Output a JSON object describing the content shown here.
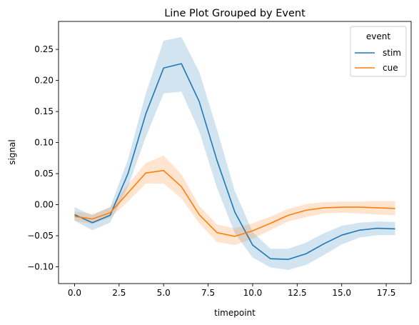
{
  "chart_data": {
    "type": "line",
    "title": "Line Plot Grouped by Event",
    "xlabel": "timepoint",
    "ylabel": "signal",
    "xlim": [
      -0.9,
      18.9
    ],
    "ylim": [
      -0.127,
      0.295
    ],
    "x_ticks": [
      0.0,
      2.5,
      5.0,
      7.5,
      10.0,
      12.5,
      15.0,
      17.5
    ],
    "x_tick_labels": [
      "0.0",
      "2.5",
      "5.0",
      "7.5",
      "10.0",
      "12.5",
      "15.0",
      "17.5"
    ],
    "y_ticks": [
      -0.1,
      -0.05,
      0.0,
      0.05,
      0.1,
      0.15,
      0.2,
      0.25
    ],
    "y_tick_labels": [
      "−0.10",
      "−0.05",
      "0.00",
      "0.05",
      "0.10",
      "0.15",
      "0.20",
      "0.25"
    ],
    "grid": false,
    "legend": {
      "title": "event",
      "placement": "top-right"
    },
    "x": [
      0,
      1,
      2,
      3,
      4,
      5,
      6,
      7,
      8,
      9,
      10,
      11,
      12,
      13,
      14,
      15,
      16,
      17,
      18
    ],
    "series": [
      {
        "name": "stim",
        "color": "#1f77b4",
        "values": [
          -0.016,
          -0.029,
          -0.017,
          0.05,
          0.146,
          0.22,
          0.227,
          0.166,
          0.071,
          -0.012,
          -0.065,
          -0.087,
          -0.088,
          -0.079,
          -0.063,
          -0.049,
          -0.041,
          -0.038,
          -0.039
        ],
        "ci_low": [
          -0.026,
          -0.041,
          -0.029,
          0.029,
          0.109,
          0.179,
          0.182,
          0.118,
          0.027,
          -0.046,
          -0.085,
          -0.101,
          -0.105,
          -0.097,
          -0.081,
          -0.064,
          -0.053,
          -0.049,
          -0.049
        ],
        "ci_high": [
          -0.004,
          -0.017,
          -0.004,
          0.073,
          0.179,
          0.264,
          0.27,
          0.214,
          0.121,
          0.022,
          -0.044,
          -0.071,
          -0.071,
          -0.061,
          -0.046,
          -0.034,
          -0.029,
          -0.027,
          -0.028
        ]
      },
      {
        "name": "cue",
        "color": "#ff7f0e",
        "values": [
          -0.019,
          -0.023,
          -0.013,
          0.019,
          0.051,
          0.055,
          0.029,
          -0.016,
          -0.045,
          -0.051,
          -0.042,
          -0.03,
          -0.017,
          -0.009,
          -0.005,
          -0.004,
          -0.004,
          -0.005,
          -0.006
        ],
        "ci_low": [
          -0.026,
          -0.031,
          -0.021,
          0.005,
          0.034,
          0.034,
          0.01,
          -0.03,
          -0.06,
          -0.065,
          -0.055,
          -0.041,
          -0.027,
          -0.02,
          -0.014,
          -0.013,
          -0.014,
          -0.016,
          -0.017
        ],
        "ci_high": [
          -0.011,
          -0.015,
          -0.004,
          0.033,
          0.067,
          0.079,
          0.049,
          -0.002,
          -0.032,
          -0.038,
          -0.03,
          -0.019,
          -0.007,
          0.001,
          0.004,
          0.005,
          0.005,
          0.006,
          0.006
        ]
      }
    ]
  }
}
